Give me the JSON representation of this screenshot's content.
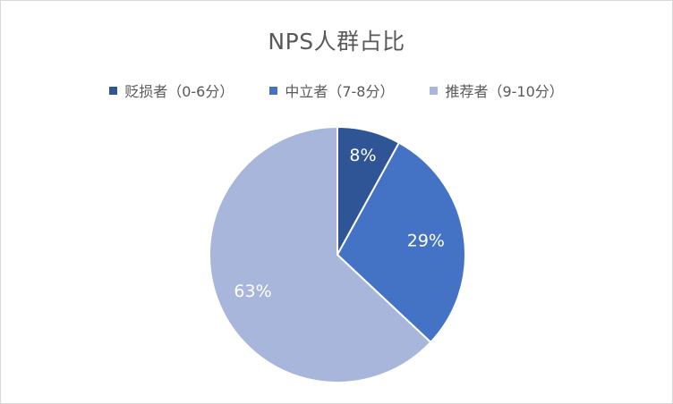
{
  "chart_data": {
    "type": "pie",
    "title": "NPS人群占比",
    "categories": [
      "贬损者（0-6分）",
      "中立者（7-8分）",
      "推荐者（9-10分）"
    ],
    "values": [
      8,
      29,
      63
    ],
    "labels": [
      "8%",
      "29%",
      "63%"
    ],
    "colors": [
      "#2f5597",
      "#4472c4",
      "#a9b6db"
    ],
    "legend_position": "top"
  }
}
